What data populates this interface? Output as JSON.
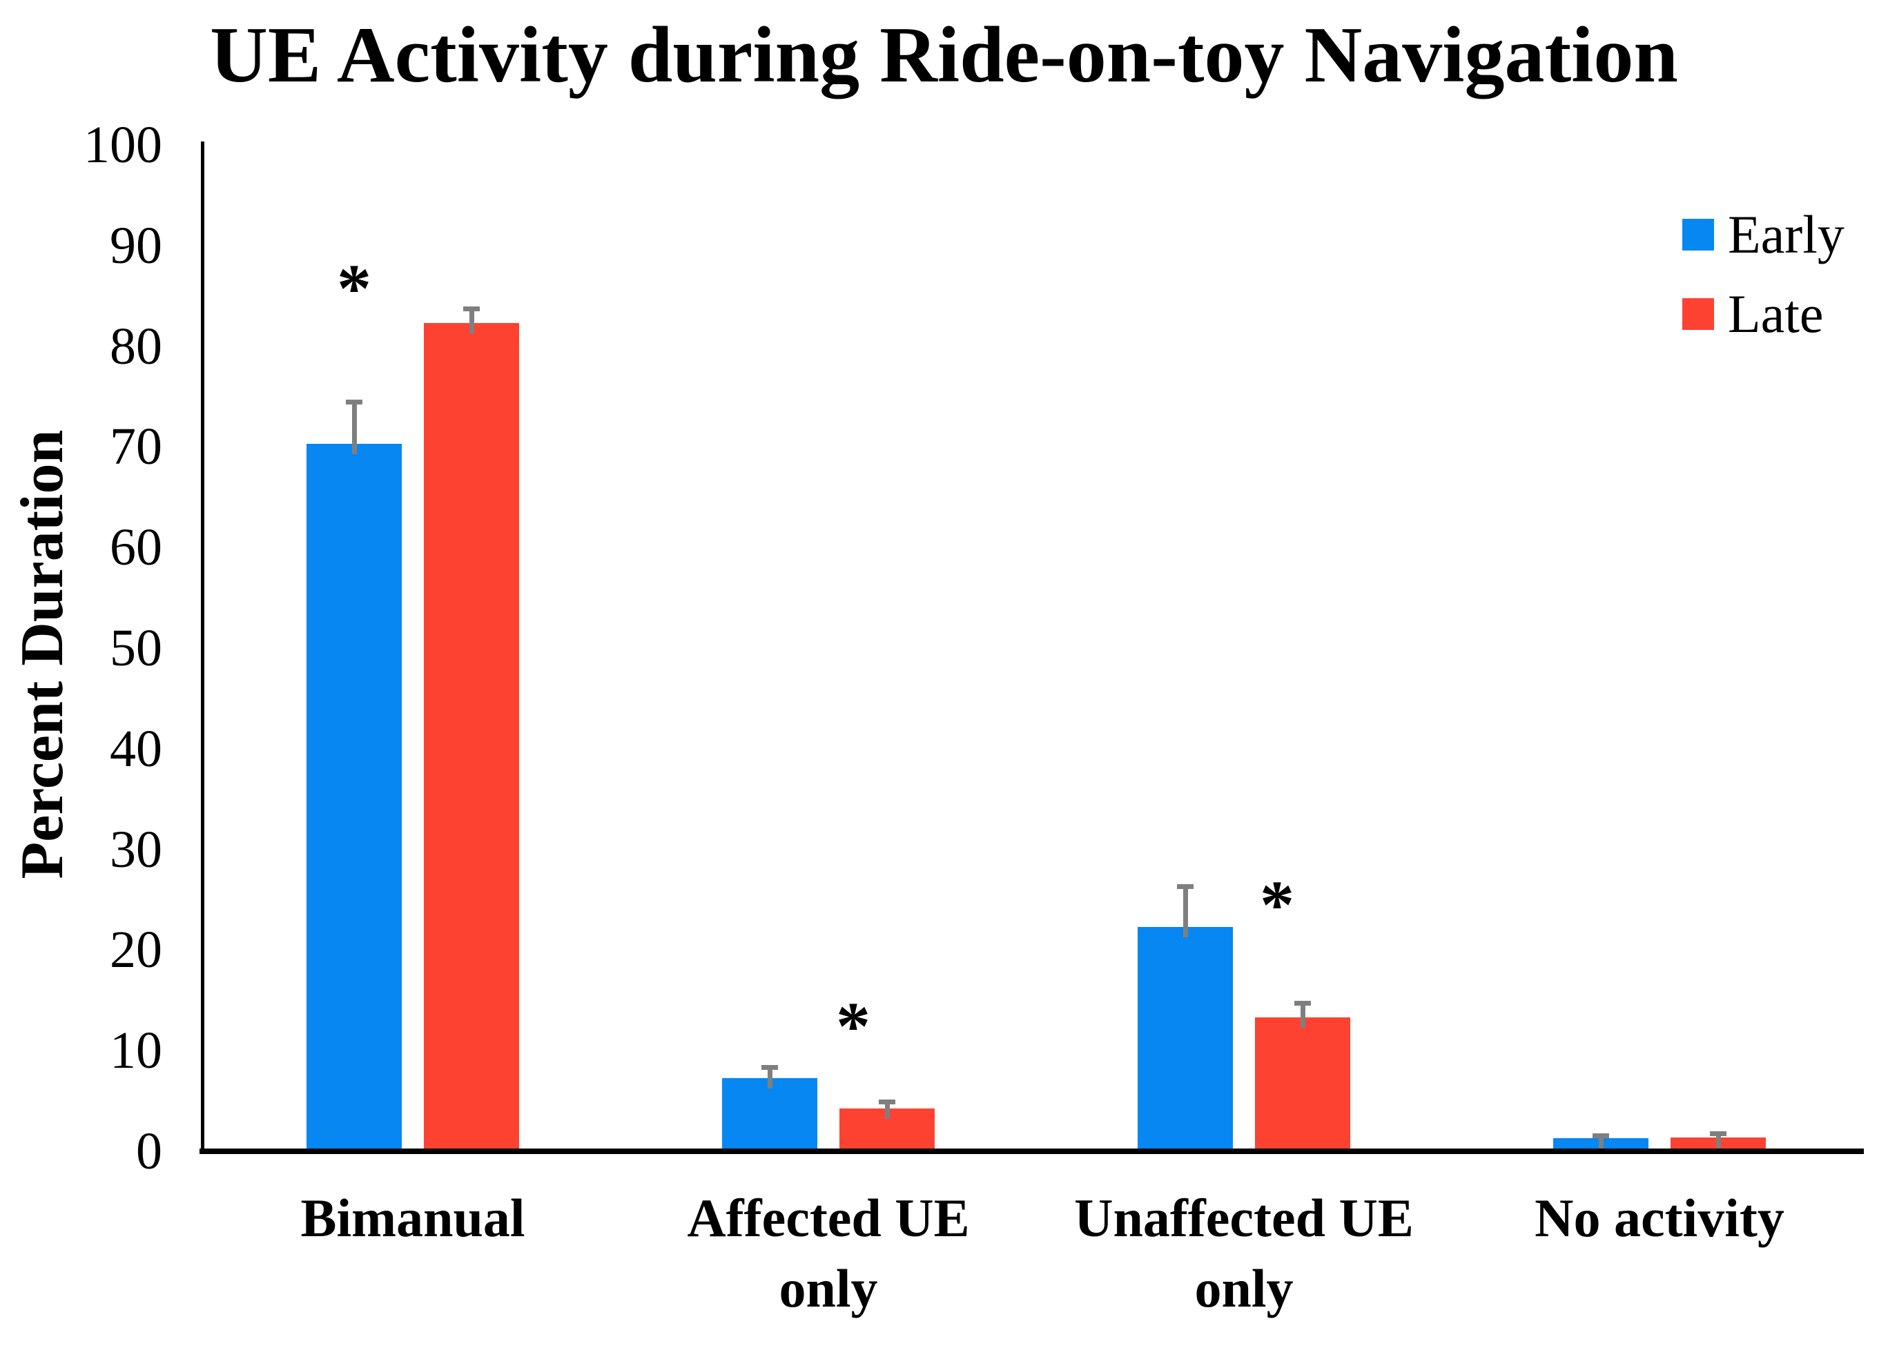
{
  "title": "UE Activity during Ride-on-toy Navigation",
  "y_axis": {
    "label": "Percent Duration",
    "min": 0,
    "max": 100,
    "step": 10
  },
  "legend": [
    {
      "label": "Early",
      "color": "#0787F2"
    },
    {
      "label": "Late",
      "color": "#FE4232"
    }
  ],
  "colors": {
    "early": "#0787F2",
    "late": "#FE4232",
    "error_bar": "#7F7F7F",
    "axis": "#000000"
  },
  "chart_data": {
    "type": "bar",
    "title": "UE Activity during Ride-on-toy Navigation",
    "xlabel": "",
    "ylabel": "Percent Duration",
    "ylim": [
      0,
      100
    ],
    "ytick_step": 10,
    "grid": false,
    "legend_position": "top-right",
    "categories": [
      "Bimanual",
      "Affected UE only",
      "Unaffected UE only",
      "No activity"
    ],
    "category_lines": [
      [
        "Bimanual"
      ],
      [
        "Affected UE",
        "only"
      ],
      [
        "Unaffected UE",
        "only"
      ],
      [
        "No activity"
      ]
    ],
    "series": [
      {
        "name": "Early",
        "color": "#0787F2",
        "values": [
          70,
          7,
          22,
          1
        ],
        "errors_plus": [
          4.4,
          1.3,
          4.3,
          0.5
        ]
      },
      {
        "name": "Late",
        "color": "#FE4232",
        "values": [
          82,
          4,
          13,
          1.1
        ],
        "errors_plus": [
          1.7,
          0.9,
          1.7,
          0.6
        ]
      }
    ],
    "significance_markers": [
      {
        "category": "Bimanual",
        "series": "Early",
        "marker": "*",
        "y": 86.6,
        "dx": 0
      },
      {
        "category": "Affected UE only",
        "series": "Late",
        "marker": "*",
        "y": 13.3,
        "dx": -49
      },
      {
        "category": "Unaffected UE only",
        "series": "Late",
        "marker": "*",
        "y": 25.4,
        "dx": -37
      }
    ]
  }
}
